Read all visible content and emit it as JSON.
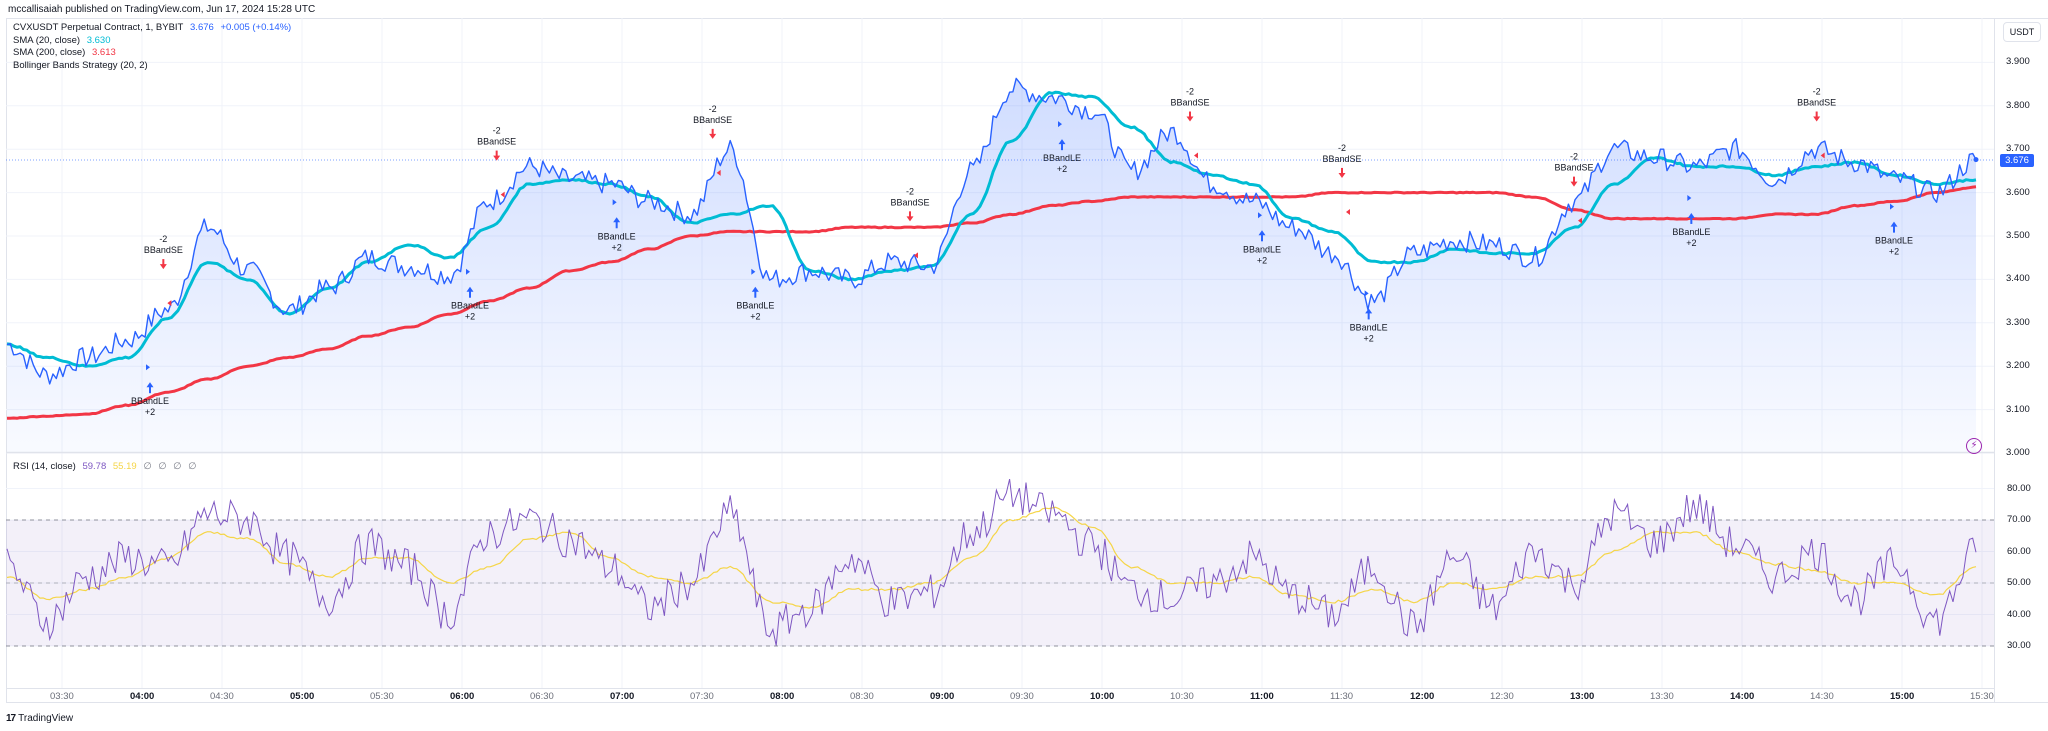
{
  "header": {
    "published": "mccallisaiah published on TradingView.com, Jun 17, 2024 15:28 UTC"
  },
  "legend": {
    "symbol": "CVXUSDT Perpetual Contract, 1, BYBIT",
    "price": "3.676",
    "change": "+0.005 (+0.14%)",
    "sma20_label": "SMA (20, close)",
    "sma20_value": "3.630",
    "sma200_label": "SMA (200, close)",
    "sma200_value": "3.613",
    "strategy_label": "Bollinger Bands Strategy (20, 2)"
  },
  "rsi_legend": {
    "label": "RSI (14, close)",
    "rsi_value": "59.78",
    "ma_value": "55.19",
    "extras": [
      "∅",
      "∅",
      "∅",
      "∅"
    ]
  },
  "price_axis": {
    "currency": "USDT",
    "current_price_tag": "3.676",
    "ticks": [
      "3.900",
      "3.800",
      "3.700",
      "3.600",
      "3.500",
      "3.400",
      "3.300",
      "3.200",
      "3.100",
      "3.000"
    ]
  },
  "rsi_axis": {
    "ticks": [
      "80.00",
      "70.00",
      "60.00",
      "50.00",
      "40.00",
      "30.00"
    ]
  },
  "time_axis": {
    "ticks": [
      "03:30",
      "04:00",
      "04:30",
      "05:00",
      "05:30",
      "06:00",
      "06:30",
      "07:00",
      "07:30",
      "08:00",
      "08:30",
      "09:00",
      "09:30",
      "10:00",
      "10:30",
      "11:00",
      "11:30",
      "12:00",
      "12:30",
      "13:00",
      "13:30",
      "14:00",
      "14:30",
      "15:00",
      "15:30"
    ],
    "bold_ticks": [
      "04:00",
      "05:00",
      "06:00",
      "07:00",
      "08:00",
      "09:00",
      "10:00",
      "11:00",
      "12:00",
      "13:00",
      "14:00",
      "15:00"
    ]
  },
  "footer": {
    "logo_mark": "17",
    "logo_text": "TradingView"
  },
  "colors": {
    "price_line": "#2962ff",
    "sma20": "#00bcd4",
    "sma200": "#f23645",
    "rsi_line": "#7e57c2",
    "rsi_ma": "#f5d547",
    "long_signal": "#2962ff",
    "short_signal": "#f23645",
    "bolt": "#9c27b0"
  },
  "chart_data": [
    {
      "type": "line",
      "title": "CVXUSDT Perpetual Contract, 1, BYBIT",
      "xlabel": "",
      "ylabel": "USDT",
      "ylim": [
        3.0,
        3.95
      ],
      "grid": true,
      "x": [
        "03:15",
        "03:30",
        "03:45",
        "04:00",
        "04:15",
        "04:30",
        "04:45",
        "05:00",
        "05:15",
        "05:30",
        "05:45",
        "06:00",
        "06:15",
        "06:30",
        "06:45",
        "07:00",
        "07:15",
        "07:30",
        "07:45",
        "08:00",
        "08:15",
        "08:30",
        "08:45",
        "09:00",
        "09:15",
        "09:30",
        "09:45",
        "10:00",
        "10:15",
        "10:30",
        "10:45",
        "11:00",
        "11:15",
        "11:30",
        "11:45",
        "12:00",
        "12:15",
        "12:30",
        "12:45",
        "13:00",
        "13:15",
        "13:30",
        "13:45",
        "14:00",
        "14:15",
        "14:30",
        "14:45",
        "15:00",
        "15:15",
        "15:30"
      ],
      "series": [
        {
          "name": "Price (close)",
          "values": [
            3.25,
            3.18,
            3.22,
            3.26,
            3.33,
            3.52,
            3.42,
            3.33,
            3.38,
            3.45,
            3.43,
            3.41,
            3.58,
            3.66,
            3.63,
            3.62,
            3.58,
            3.55,
            3.7,
            3.4,
            3.42,
            3.4,
            3.44,
            3.43,
            3.65,
            3.84,
            3.82,
            3.79,
            3.65,
            3.74,
            3.62,
            3.58,
            3.52,
            3.46,
            3.35,
            3.46,
            3.49,
            3.48,
            3.45,
            3.58,
            3.7,
            3.68,
            3.66,
            3.7,
            3.63,
            3.7,
            3.67,
            3.63,
            3.6,
            3.676
          ]
        },
        {
          "name": "SMA (20, close)",
          "values": [
            3.25,
            3.22,
            3.2,
            3.22,
            3.31,
            3.44,
            3.4,
            3.32,
            3.38,
            3.44,
            3.48,
            3.45,
            3.52,
            3.62,
            3.63,
            3.62,
            3.59,
            3.53,
            3.55,
            3.57,
            3.42,
            3.4,
            3.42,
            3.43,
            3.55,
            3.72,
            3.83,
            3.82,
            3.75,
            3.67,
            3.64,
            3.62,
            3.54,
            3.51,
            3.44,
            3.44,
            3.47,
            3.46,
            3.46,
            3.52,
            3.62,
            3.68,
            3.66,
            3.66,
            3.64,
            3.66,
            3.67,
            3.64,
            3.62,
            3.63
          ]
        },
        {
          "name": "SMA (200, close)",
          "values": [
            3.08,
            3.085,
            3.09,
            3.11,
            3.14,
            3.17,
            3.2,
            3.22,
            3.24,
            3.27,
            3.29,
            3.32,
            3.35,
            3.38,
            3.42,
            3.44,
            3.47,
            3.5,
            3.51,
            3.51,
            3.51,
            3.52,
            3.52,
            3.52,
            3.53,
            3.55,
            3.57,
            3.58,
            3.59,
            3.59,
            3.59,
            3.59,
            3.59,
            3.6,
            3.6,
            3.6,
            3.6,
            3.6,
            3.59,
            3.56,
            3.54,
            3.54,
            3.54,
            3.54,
            3.55,
            3.55,
            3.57,
            3.58,
            3.6,
            3.613
          ]
        }
      ],
      "signals": [
        {
          "type": "short",
          "label": "BBandSE",
          "qty": "-2",
          "time": "04:08",
          "price": 3.38
        },
        {
          "type": "long",
          "label": "BBandLE",
          "qty": "+2",
          "time": "04:03",
          "price": 3.2
        },
        {
          "type": "long",
          "label": "BBandLE",
          "qty": "+2",
          "time": "06:03",
          "price": 3.42
        },
        {
          "type": "short",
          "label": "BBandSE",
          "qty": "-2",
          "time": "06:13",
          "price": 3.63
        },
        {
          "type": "long",
          "label": "BBandLE",
          "qty": "+2",
          "time": "06:58",
          "price": 3.58
        },
        {
          "type": "short",
          "label": "BBandSE",
          "qty": "-2",
          "time": "07:34",
          "price": 3.68
        },
        {
          "type": "long",
          "label": "BBandLE",
          "qty": "+2",
          "time": "07:50",
          "price": 3.42
        },
        {
          "type": "short",
          "label": "BBandSE",
          "qty": "-2",
          "time": "08:48",
          "price": 3.49
        },
        {
          "type": "long",
          "label": "BBandLE",
          "qty": "+2",
          "time": "09:45",
          "price": 3.76
        },
        {
          "type": "short",
          "label": "BBandSE",
          "qty": "-2",
          "time": "10:33",
          "price": 3.72
        },
        {
          "type": "long",
          "label": "BBandLE",
          "qty": "+2",
          "time": "11:00",
          "price": 3.55
        },
        {
          "type": "short",
          "label": "BBandSE",
          "qty": "-2",
          "time": "11:30",
          "price": 3.59
        },
        {
          "type": "long",
          "label": "BBandLE",
          "qty": "+2",
          "time": "11:40",
          "price": 3.37
        },
        {
          "type": "short",
          "label": "BBandSE",
          "qty": "-2",
          "time": "12:57",
          "price": 3.57
        },
        {
          "type": "long",
          "label": "BBandLE",
          "qty": "+2",
          "time": "13:41",
          "price": 3.59
        },
        {
          "type": "short",
          "label": "BBandSE",
          "qty": "-2",
          "time": "14:28",
          "price": 3.72
        },
        {
          "type": "long",
          "label": "BBandLE",
          "qty": "+2",
          "time": "14:57",
          "price": 3.57
        }
      ]
    },
    {
      "type": "line",
      "title": "RSI (14, close)",
      "ylim": [
        20,
        85
      ],
      "bands": {
        "upper": 70,
        "middle": 50,
        "lower": 30
      },
      "x": [
        "03:15",
        "03:30",
        "03:45",
        "04:00",
        "04:15",
        "04:30",
        "04:45",
        "05:00",
        "05:15",
        "05:30",
        "05:45",
        "06:00",
        "06:15",
        "06:30",
        "06:45",
        "07:00",
        "07:15",
        "07:30",
        "07:45",
        "08:00",
        "08:15",
        "08:30",
        "08:45",
        "09:00",
        "09:15",
        "09:30",
        "09:45",
        "10:00",
        "10:15",
        "10:30",
        "10:45",
        "11:00",
        "11:15",
        "11:30",
        "11:45",
        "12:00",
        "12:15",
        "12:30",
        "12:45",
        "13:00",
        "13:15",
        "13:30",
        "13:45",
        "14:00",
        "14:15",
        "14:30",
        "14:45",
        "15:00",
        "15:15",
        "15:30"
      ],
      "series": [
        {
          "name": "RSI",
          "values": [
            55,
            38,
            52,
            58,
            55,
            72,
            70,
            58,
            45,
            62,
            55,
            40,
            66,
            70,
            64,
            55,
            42,
            50,
            72,
            35,
            42,
            58,
            44,
            47,
            66,
            78,
            72,
            62,
            48,
            45,
            50,
            58,
            46,
            40,
            55,
            36,
            58,
            42,
            60,
            50,
            72,
            63,
            74,
            62,
            52,
            60,
            45,
            56,
            38,
            59.78
          ]
        },
        {
          "name": "RSI-based MA",
          "values": [
            52,
            45,
            48,
            52,
            58,
            66,
            64,
            56,
            52,
            58,
            58,
            50,
            55,
            64,
            66,
            58,
            52,
            50,
            55,
            44,
            42,
            48,
            48,
            50,
            58,
            70,
            74,
            68,
            55,
            50,
            50,
            52,
            46,
            44,
            48,
            44,
            50,
            48,
            52,
            52,
            60,
            66,
            66,
            60,
            56,
            54,
            50,
            50,
            46,
            55.19
          ]
        }
      ]
    }
  ]
}
